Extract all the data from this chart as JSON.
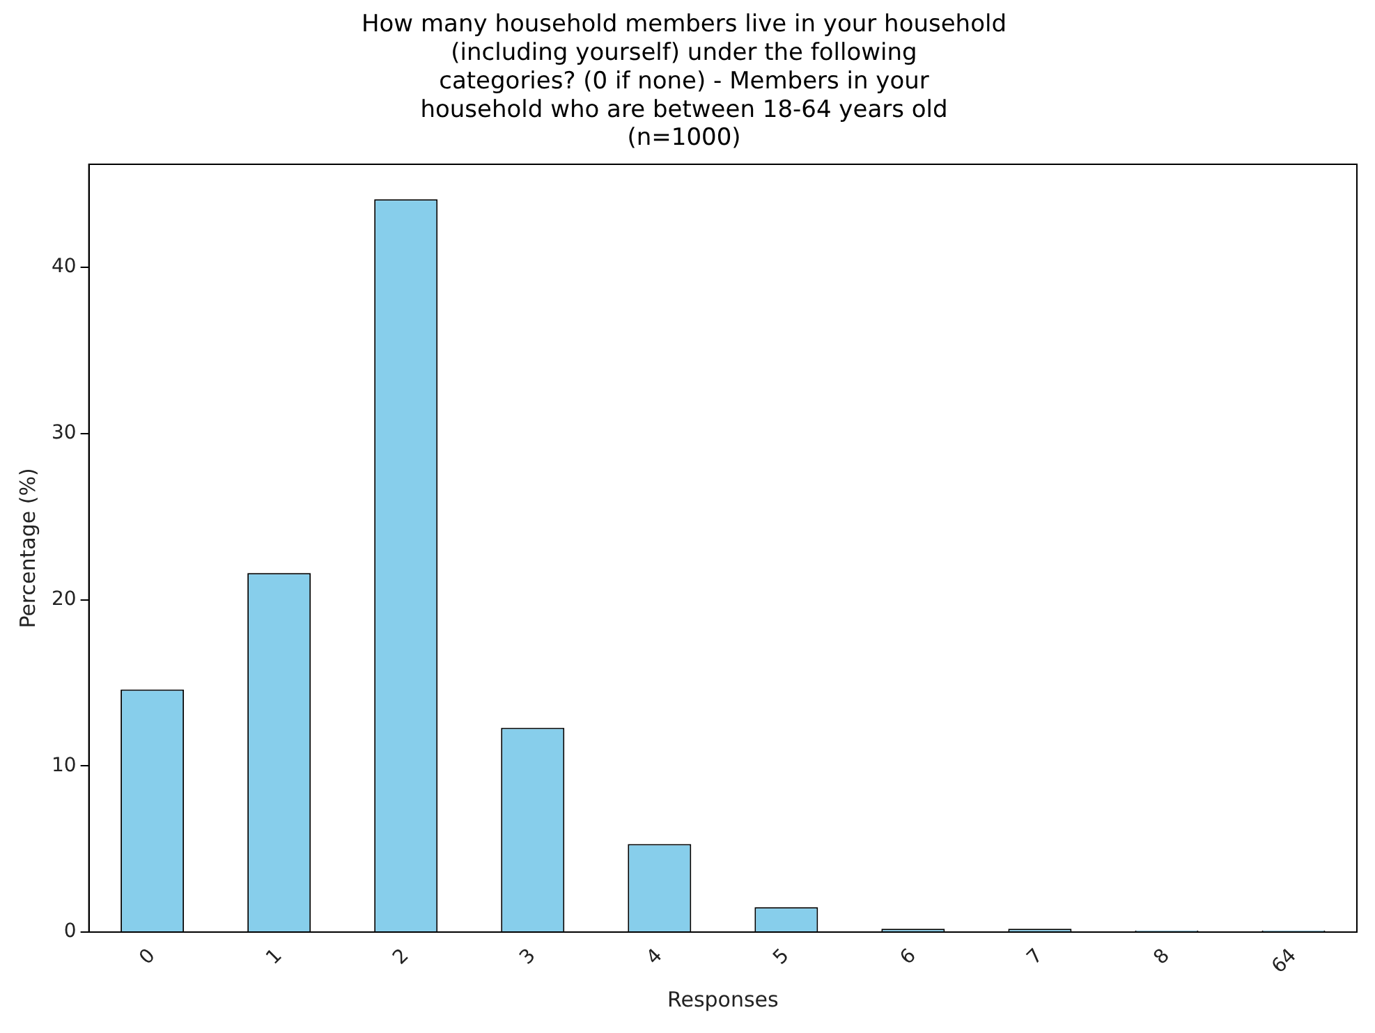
{
  "chart_data": {
    "type": "bar",
    "title": "How many household members live in your household\n(including yourself) under the following\ncategories? (0 if none) - Members in your\nhousehold who are between 18-64 years old\n(n=1000)",
    "xlabel": "Responses",
    "ylabel": "Percentage (%)",
    "categories": [
      "0",
      "1",
      "2",
      "3",
      "4",
      "5",
      "6",
      "7",
      "8",
      "64"
    ],
    "values": [
      14.6,
      21.6,
      44.1,
      12.3,
      5.3,
      1.5,
      0.2,
      0.2,
      0.1,
      0.1
    ],
    "color": "#87ceeb",
    "ylim": [
      0,
      46.2
    ],
    "yticks": [
      0,
      10,
      20,
      30,
      40
    ],
    "grid": false,
    "legend": false
  }
}
